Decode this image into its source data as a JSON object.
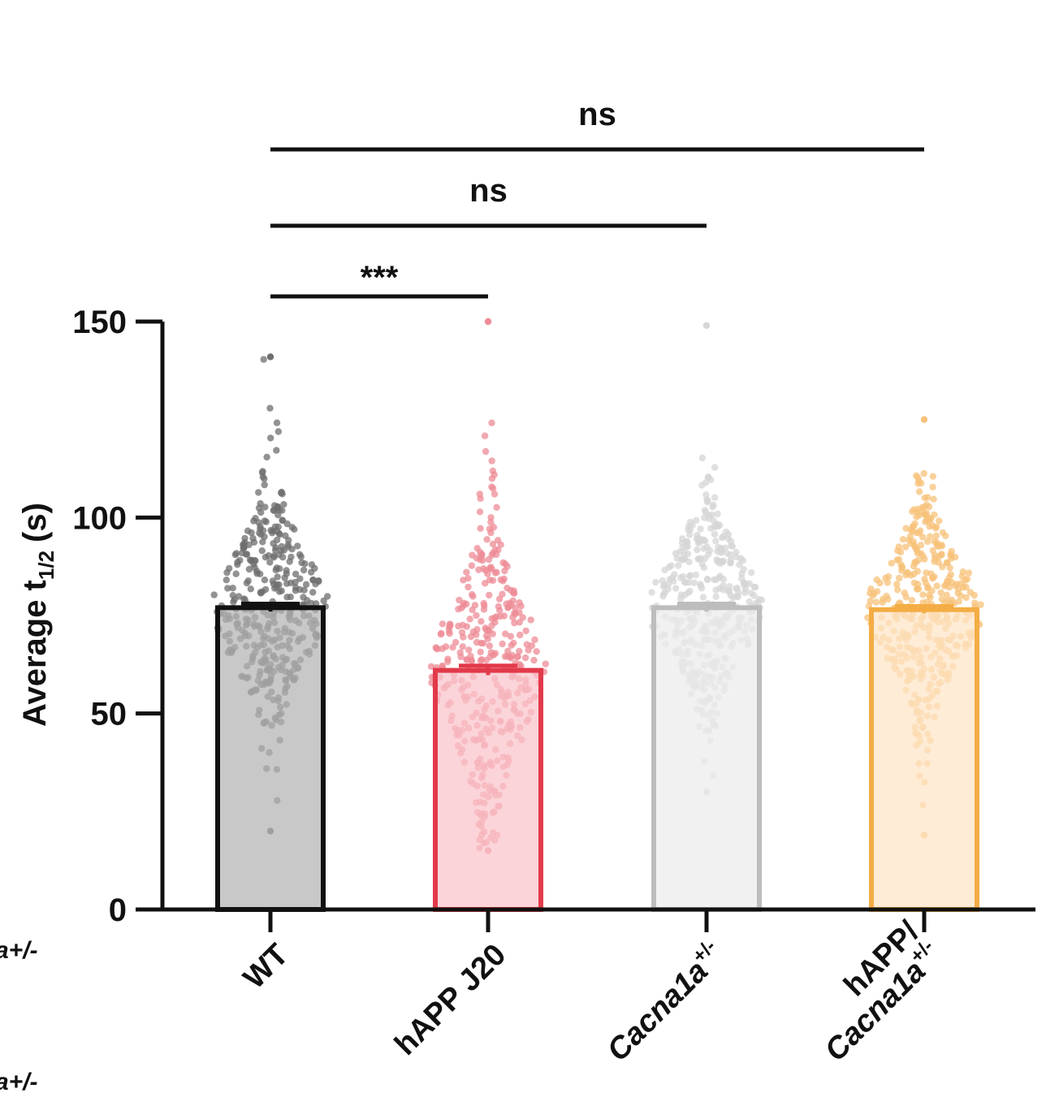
{
  "chart_data": {
    "type": "bar",
    "ylabel": "Average t1/2 (s)",
    "ylabel_main": "Average t",
    "ylabel_sub": "1/2",
    "ylabel_unit": "(s)",
    "ylim": [
      0,
      150
    ],
    "yticks": [
      "0",
      "50",
      "100",
      "150"
    ],
    "categories": [
      "WT",
      "hAPP J20",
      "Cacna1a+/-",
      "hAPP/ Cacna1a+/-"
    ],
    "labels": [
      {
        "main": "WT",
        "sup": "",
        "line1": ""
      },
      {
        "main": "hAPP J20",
        "sup": "",
        "line1": ""
      },
      {
        "main": "Cacna1a",
        "sup": "+/-",
        "line1": ""
      },
      {
        "main": "Cacna1a",
        "sup": "+/-",
        "line1": "hAPP/"
      }
    ],
    "values": [
      77,
      61,
      77,
      76.5
    ],
    "sem": [
      1.0,
      1.2,
      1.0,
      0.9
    ],
    "individual_points": "approx. 400 per group",
    "colors": {
      "WT": {
        "fill": "#b3b3b3",
        "stroke": "#111111",
        "dot": "#6e6e6e"
      },
      "hAPP J20": {
        "fill": "#f9c4ca",
        "stroke": "#e23a4a",
        "dot": "#ee8b96"
      },
      "Cacna1a+/-": {
        "fill": "#ebebeb",
        "stroke": "#bdbdbd",
        "dot": "#d6d6d6"
      },
      "hAPP/ Cacna1a+/-": {
        "fill": "#fde5c6",
        "stroke": "#f4ad45",
        "dot": "#f7c27a"
      }
    },
    "comparisons": [
      {
        "from": "WT",
        "to": "hAPP J20",
        "label": "***"
      },
      {
        "from": "WT",
        "to": "Cacna1a+/-",
        "label": "ns"
      },
      {
        "from": "WT",
        "to": "hAPP/ Cacna1a+/-",
        "label": "ns"
      }
    ],
    "edge_fragments": [
      "a+/-",
      "a+/-"
    ]
  }
}
